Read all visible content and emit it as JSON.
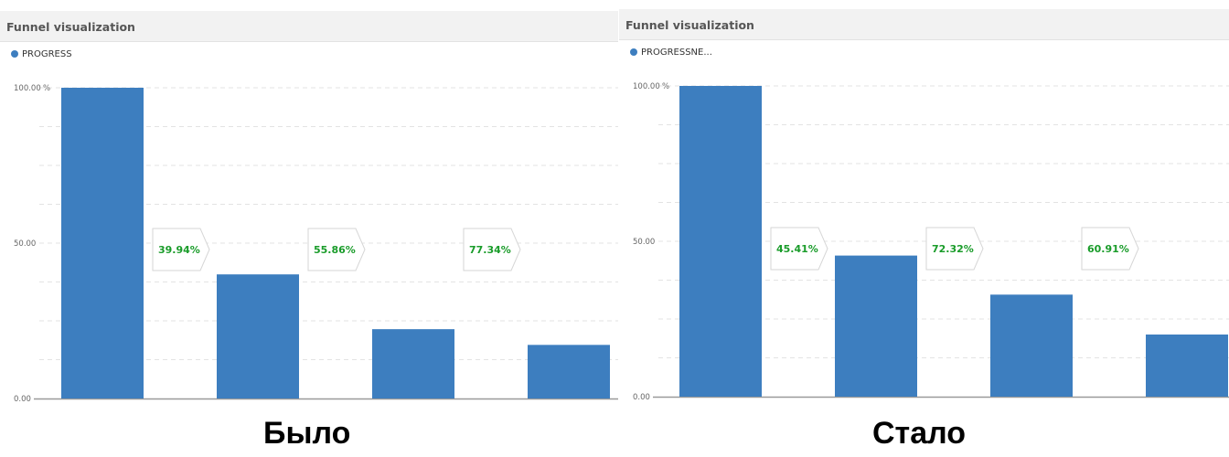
{
  "colors": {
    "bar": "#3d7ebf",
    "conversion_text": "#1a9c2a",
    "grid": "#e3e3e3",
    "axis": "#999999"
  },
  "chart_data": [
    {
      "type": "bar",
      "title": "Funnel visualization",
      "legend": "PROGRESS",
      "legend_placement": "top-left",
      "y_unit": "%",
      "ylim": [
        0,
        100
      ],
      "y_ticks": [
        "0.00",
        "50.00",
        "100.00"
      ],
      "grid": true,
      "values": [
        100.0,
        39.94,
        22.31,
        17.25
      ],
      "conversions": [
        "39.94%",
        "55.86%",
        "77.34%"
      ]
    },
    {
      "type": "bar",
      "title": "Funnel visualization",
      "legend": "PROGRESSNE...",
      "legend_placement": "top-left",
      "y_unit": "%",
      "ylim": [
        0,
        100
      ],
      "y_ticks": [
        "0.00",
        "50.00",
        "100.00"
      ],
      "grid": true,
      "values": [
        100.0,
        45.41,
        32.84,
        20.0
      ],
      "conversions": [
        "45.41%",
        "72.32%",
        "60.91%"
      ]
    }
  ],
  "captions": {
    "before": "Было",
    "after": "Стало"
  }
}
